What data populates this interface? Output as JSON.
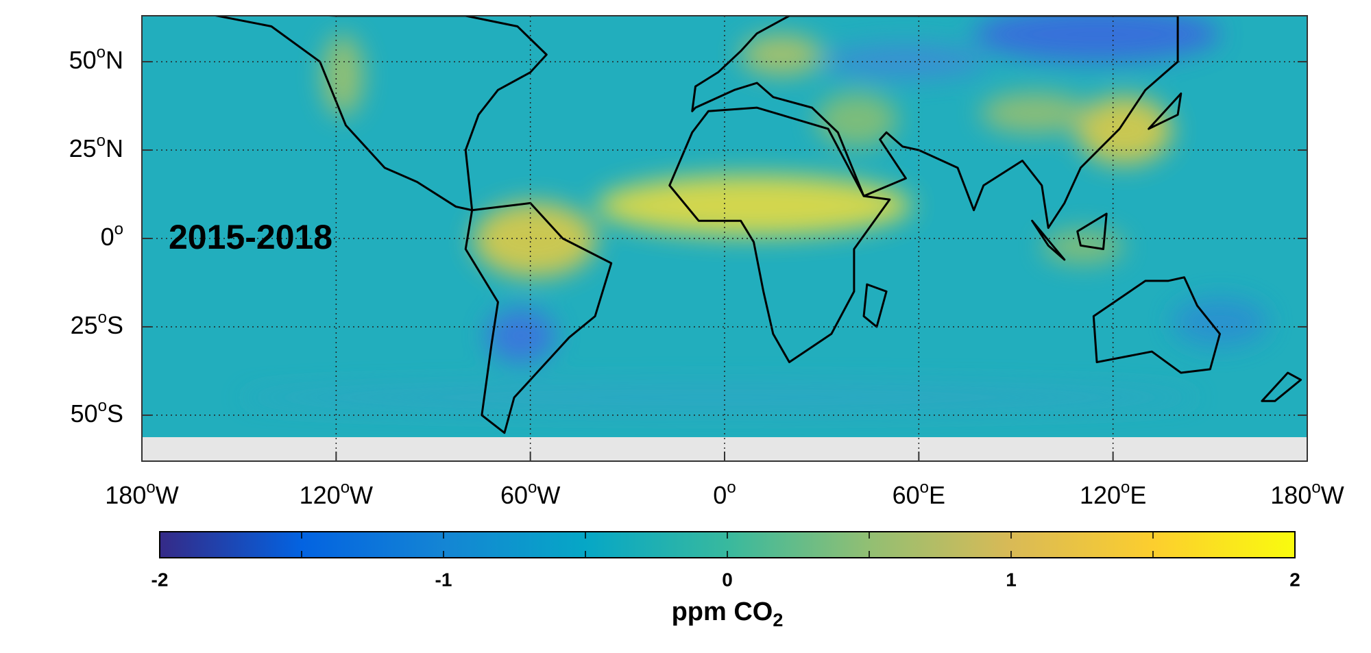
{
  "map": {
    "title": "2015-2018",
    "lon_range": [
      -180,
      180
    ],
    "lat_range": [
      -63,
      63
    ],
    "grid": true,
    "lat_ticks": [
      {
        "value": 50,
        "label": {
          "number": "50",
          "degree": "o",
          "hemisphere": "N"
        }
      },
      {
        "value": 25,
        "label": {
          "number": "25",
          "degree": "o",
          "hemisphere": "N"
        }
      },
      {
        "value": 0,
        "label": {
          "number": "0",
          "degree": "o"
        }
      },
      {
        "value": -25,
        "label": {
          "number": "25",
          "degree": "o",
          "hemisphere": "S"
        }
      },
      {
        "value": -50,
        "label": {
          "number": "50",
          "degree": "o",
          "hemisphere": "S"
        }
      }
    ],
    "lon_ticks": [
      {
        "value": -180,
        "label": {
          "number": "180",
          "degree": "o",
          "hemisphere": "W"
        }
      },
      {
        "value": -120,
        "label": {
          "number": "120",
          "degree": "o",
          "hemisphere": "W"
        }
      },
      {
        "value": -60,
        "label": {
          "number": "60",
          "degree": "o",
          "hemisphere": "W"
        }
      },
      {
        "value": 0,
        "label": {
          "number": "0",
          "degree": "o"
        }
      },
      {
        "value": 60,
        "label": {
          "number": "60",
          "degree": "o",
          "hemisphere": "E"
        }
      },
      {
        "value": 120,
        "label": {
          "number": "120",
          "degree": "o",
          "hemisphere": "E"
        }
      },
      {
        "value": 180,
        "label": {
          "number": "180",
          "degree": "o",
          "hemisphere": "W"
        }
      }
    ],
    "colorbar": {
      "range": [
        -2,
        2
      ],
      "ticks": [
        -2,
        -1,
        0,
        1,
        2
      ],
      "minor_ticks": [
        -1.5,
        -0.5,
        0.5,
        1.5
      ],
      "colormap": [
        "#352a87",
        "#0363e1",
        "#1485d4",
        "#06a7c6",
        "#38b99e",
        "#92bf73",
        "#d9ba56",
        "#fcce2e",
        "#f9fb0e"
      ],
      "label": {
        "text": "ppm CO",
        "subscript": "2"
      }
    }
  }
}
